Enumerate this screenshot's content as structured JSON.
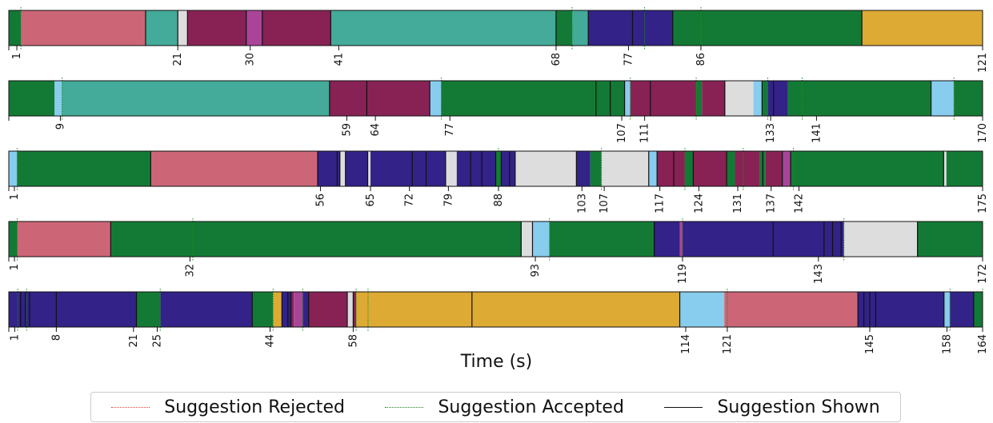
{
  "chart_data": {
    "type": "timeline",
    "xlabel": "Time (s)",
    "legend": {
      "placement": "bottom-center",
      "entries": [
        {
          "label": "Suggestion Rejected",
          "style": "dotted",
          "color": "#e0403a"
        },
        {
          "label": "Suggestion Accepted",
          "style": "dotted",
          "color": "#1a8a1a"
        },
        {
          "label": "Suggestion Shown",
          "style": "solid",
          "color": "#111111"
        }
      ]
    },
    "colors": {
      "G": "#137a35",
      "P": "#cc6677",
      "T": "#44aa99",
      "L": "#dddddd",
      "M": "#882255",
      "V": "#aa4499",
      "B": "#332288",
      "Y": "#ddaa33",
      "S": "#88ccee"
    },
    "sessions": [
      {
        "duration": 121,
        "ticks": [
          1,
          21,
          30,
          41,
          68,
          77,
          86,
          121
        ],
        "segments": [
          [
            0,
            1.5,
            "G"
          ],
          [
            1.5,
            17,
            "P"
          ],
          [
            17,
            21,
            "T"
          ],
          [
            21,
            22.2,
            "L"
          ],
          [
            22.2,
            29.5,
            "M"
          ],
          [
            29.5,
            31.5,
            "V"
          ],
          [
            31.5,
            40,
            "M"
          ],
          [
            40,
            68,
            "T"
          ],
          [
            68,
            70,
            "G"
          ],
          [
            70,
            72,
            "T"
          ],
          [
            72,
            82.5,
            "B"
          ],
          [
            82.5,
            106,
            "G"
          ],
          [
            106,
            121,
            "Y"
          ]
        ],
        "shown": [
          17,
          21,
          22.2,
          29.5,
          31.5,
          40,
          68,
          72,
          77.5,
          82.5,
          106
        ],
        "accepted": [
          1.5,
          70,
          79,
          86
        ],
        "rejected": []
      },
      {
        "duration": 170,
        "ticks": [
          9,
          59,
          64,
          77,
          107,
          111,
          133,
          141,
          170
        ],
        "segments": [
          [
            0,
            8,
            "G"
          ],
          [
            8,
            9.3,
            "S"
          ],
          [
            9.3,
            56,
            "T"
          ],
          [
            56,
            73.5,
            "M"
          ],
          [
            73.5,
            75.5,
            "S"
          ],
          [
            75.5,
            107.5,
            "G"
          ],
          [
            107.5,
            108.5,
            "S"
          ],
          [
            108.5,
            120,
            "M"
          ],
          [
            120,
            121,
            "G"
          ],
          [
            121,
            125,
            "M"
          ],
          [
            125,
            130,
            "L"
          ],
          [
            130,
            131.5,
            "S"
          ],
          [
            131.5,
            132.5,
            "G"
          ],
          [
            132.5,
            136,
            "B"
          ],
          [
            136,
            161,
            "G"
          ],
          [
            161,
            165,
            "S"
          ],
          [
            165,
            170,
            "G"
          ]
        ],
        "shown": [
          56,
          62.5,
          73.5,
          102.5,
          105,
          107.5,
          112,
          125,
          131.5,
          133.5,
          161
        ],
        "accepted": [
          9.3,
          75.5,
          108.5,
          120,
          132.5,
          138.5,
          165
        ],
        "rejected": []
      },
      {
        "duration": 175,
        "ticks": [
          1,
          56,
          65,
          72,
          79,
          88,
          103,
          107,
          117,
          124,
          131,
          137,
          142,
          175
        ],
        "segments": [
          [
            0,
            1.5,
            "S"
          ],
          [
            1.5,
            25.5,
            "G"
          ],
          [
            25.5,
            55.5,
            "P"
          ],
          [
            55.5,
            59.5,
            "B"
          ],
          [
            59.5,
            60.5,
            "L"
          ],
          [
            60.5,
            64.5,
            "B"
          ],
          [
            64.5,
            65,
            "L"
          ],
          [
            65,
            78.5,
            "B"
          ],
          [
            78.5,
            80.5,
            "L"
          ],
          [
            80.5,
            87.5,
            "B"
          ],
          [
            87.5,
            88.5,
            "G"
          ],
          [
            88.5,
            91,
            "B"
          ],
          [
            91,
            102,
            "L"
          ],
          [
            102,
            104.5,
            "B"
          ],
          [
            104.5,
            106.5,
            "G"
          ],
          [
            106.5,
            115,
            "L"
          ],
          [
            115,
            116.5,
            "S"
          ],
          [
            116.5,
            121.5,
            "M"
          ],
          [
            121.5,
            123,
            "G"
          ],
          [
            123,
            129,
            "M"
          ],
          [
            129,
            130.5,
            "G"
          ],
          [
            130.5,
            135,
            "M"
          ],
          [
            135,
            136,
            "G"
          ],
          [
            136,
            139,
            "M"
          ],
          [
            139,
            140.5,
            "V"
          ],
          [
            140.5,
            168,
            "G"
          ],
          [
            168,
            168.5,
            "L"
          ],
          [
            168.5,
            175,
            "G"
          ]
        ],
        "shown": [
          25.5,
          55.5,
          59,
          59.5,
          60.5,
          64.5,
          72.5,
          75,
          78.5,
          83,
          85,
          87.5,
          88.5,
          90,
          91,
          102,
          115,
          116.5,
          119.5,
          123,
          129,
          135.5,
          139,
          140.5,
          168
        ],
        "accepted": [
          1.5,
          88,
          106.5,
          121.5,
          132,
          141
        ],
        "rejected": []
      },
      {
        "duration": 172,
        "ticks": [
          1,
          32,
          93,
          119,
          143,
          172
        ],
        "segments": [
          [
            0,
            1.5,
            "G"
          ],
          [
            1.5,
            18,
            "P"
          ],
          [
            18,
            90.5,
            "G"
          ],
          [
            90.5,
            92.5,
            "L"
          ],
          [
            92.5,
            95.5,
            "S"
          ],
          [
            95.5,
            114,
            "G"
          ],
          [
            114,
            118.5,
            "B"
          ],
          [
            118.5,
            119,
            "V"
          ],
          [
            119,
            147.5,
            "B"
          ],
          [
            147.5,
            160.5,
            "L"
          ],
          [
            160.5,
            172,
            "G"
          ]
        ],
        "shown": [
          18,
          90.5,
          92.5,
          114,
          135,
          144,
          145.5,
          147,
          160.5
        ],
        "accepted": [
          1.5,
          32.5,
          95.5,
          119,
          147.5
        ],
        "rejected": []
      },
      {
        "duration": 164,
        "ticks": [
          1,
          8,
          21,
          25,
          44,
          58,
          114,
          121,
          145,
          158,
          164
        ],
        "segments": [
          [
            0,
            21.5,
            "B"
          ],
          [
            21.5,
            25.5,
            "G"
          ],
          [
            25.5,
            41,
            "B"
          ],
          [
            41,
            44.5,
            "G"
          ],
          [
            44.5,
            46,
            "Y"
          ],
          [
            46,
            47.5,
            "B"
          ],
          [
            47.5,
            48,
            "M"
          ],
          [
            48,
            49.5,
            "V"
          ],
          [
            49.5,
            50.5,
            "B"
          ],
          [
            50.5,
            57,
            "M"
          ],
          [
            57,
            58,
            "L"
          ],
          [
            58,
            58.5,
            "M"
          ],
          [
            58.5,
            60.5,
            "Y"
          ],
          [
            60.5,
            113,
            "Y"
          ],
          [
            113,
            120.5,
            "S"
          ],
          [
            120.5,
            143,
            "P"
          ],
          [
            143,
            157.5,
            "B"
          ],
          [
            157.5,
            158.5,
            "S"
          ],
          [
            158.5,
            162.5,
            "B"
          ],
          [
            162.5,
            164,
            "G"
          ]
        ],
        "shown": [
          2,
          2.8,
          3.5,
          8,
          21.5,
          41,
          46,
          47,
          47.5,
          50.5,
          57,
          58,
          78,
          113,
          143,
          144,
          145,
          146,
          157.5,
          162.5
        ],
        "accepted": [
          1.5,
          3,
          25.5,
          44.5,
          49.5,
          58.5,
          60.5,
          121,
          158.5,
          164
        ],
        "rejected": []
      }
    ]
  }
}
